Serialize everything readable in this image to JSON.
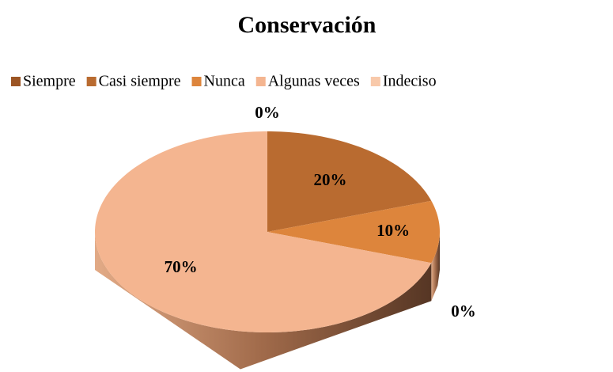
{
  "chart_data": {
    "type": "pie",
    "title": "Conservación",
    "categories": [
      "Siempre",
      "Casi siempre",
      "Nunca",
      "Algunas veces",
      "Indeciso"
    ],
    "values": [
      0,
      20,
      10,
      70,
      0
    ],
    "value_labels": [
      "0%",
      "20%",
      "10%",
      "70%",
      "0%"
    ],
    "colors": [
      "#9c5524",
      "#b96b30",
      "#dd853c",
      "#f4b590",
      "#f8c9aa"
    ],
    "legend": "top"
  }
}
